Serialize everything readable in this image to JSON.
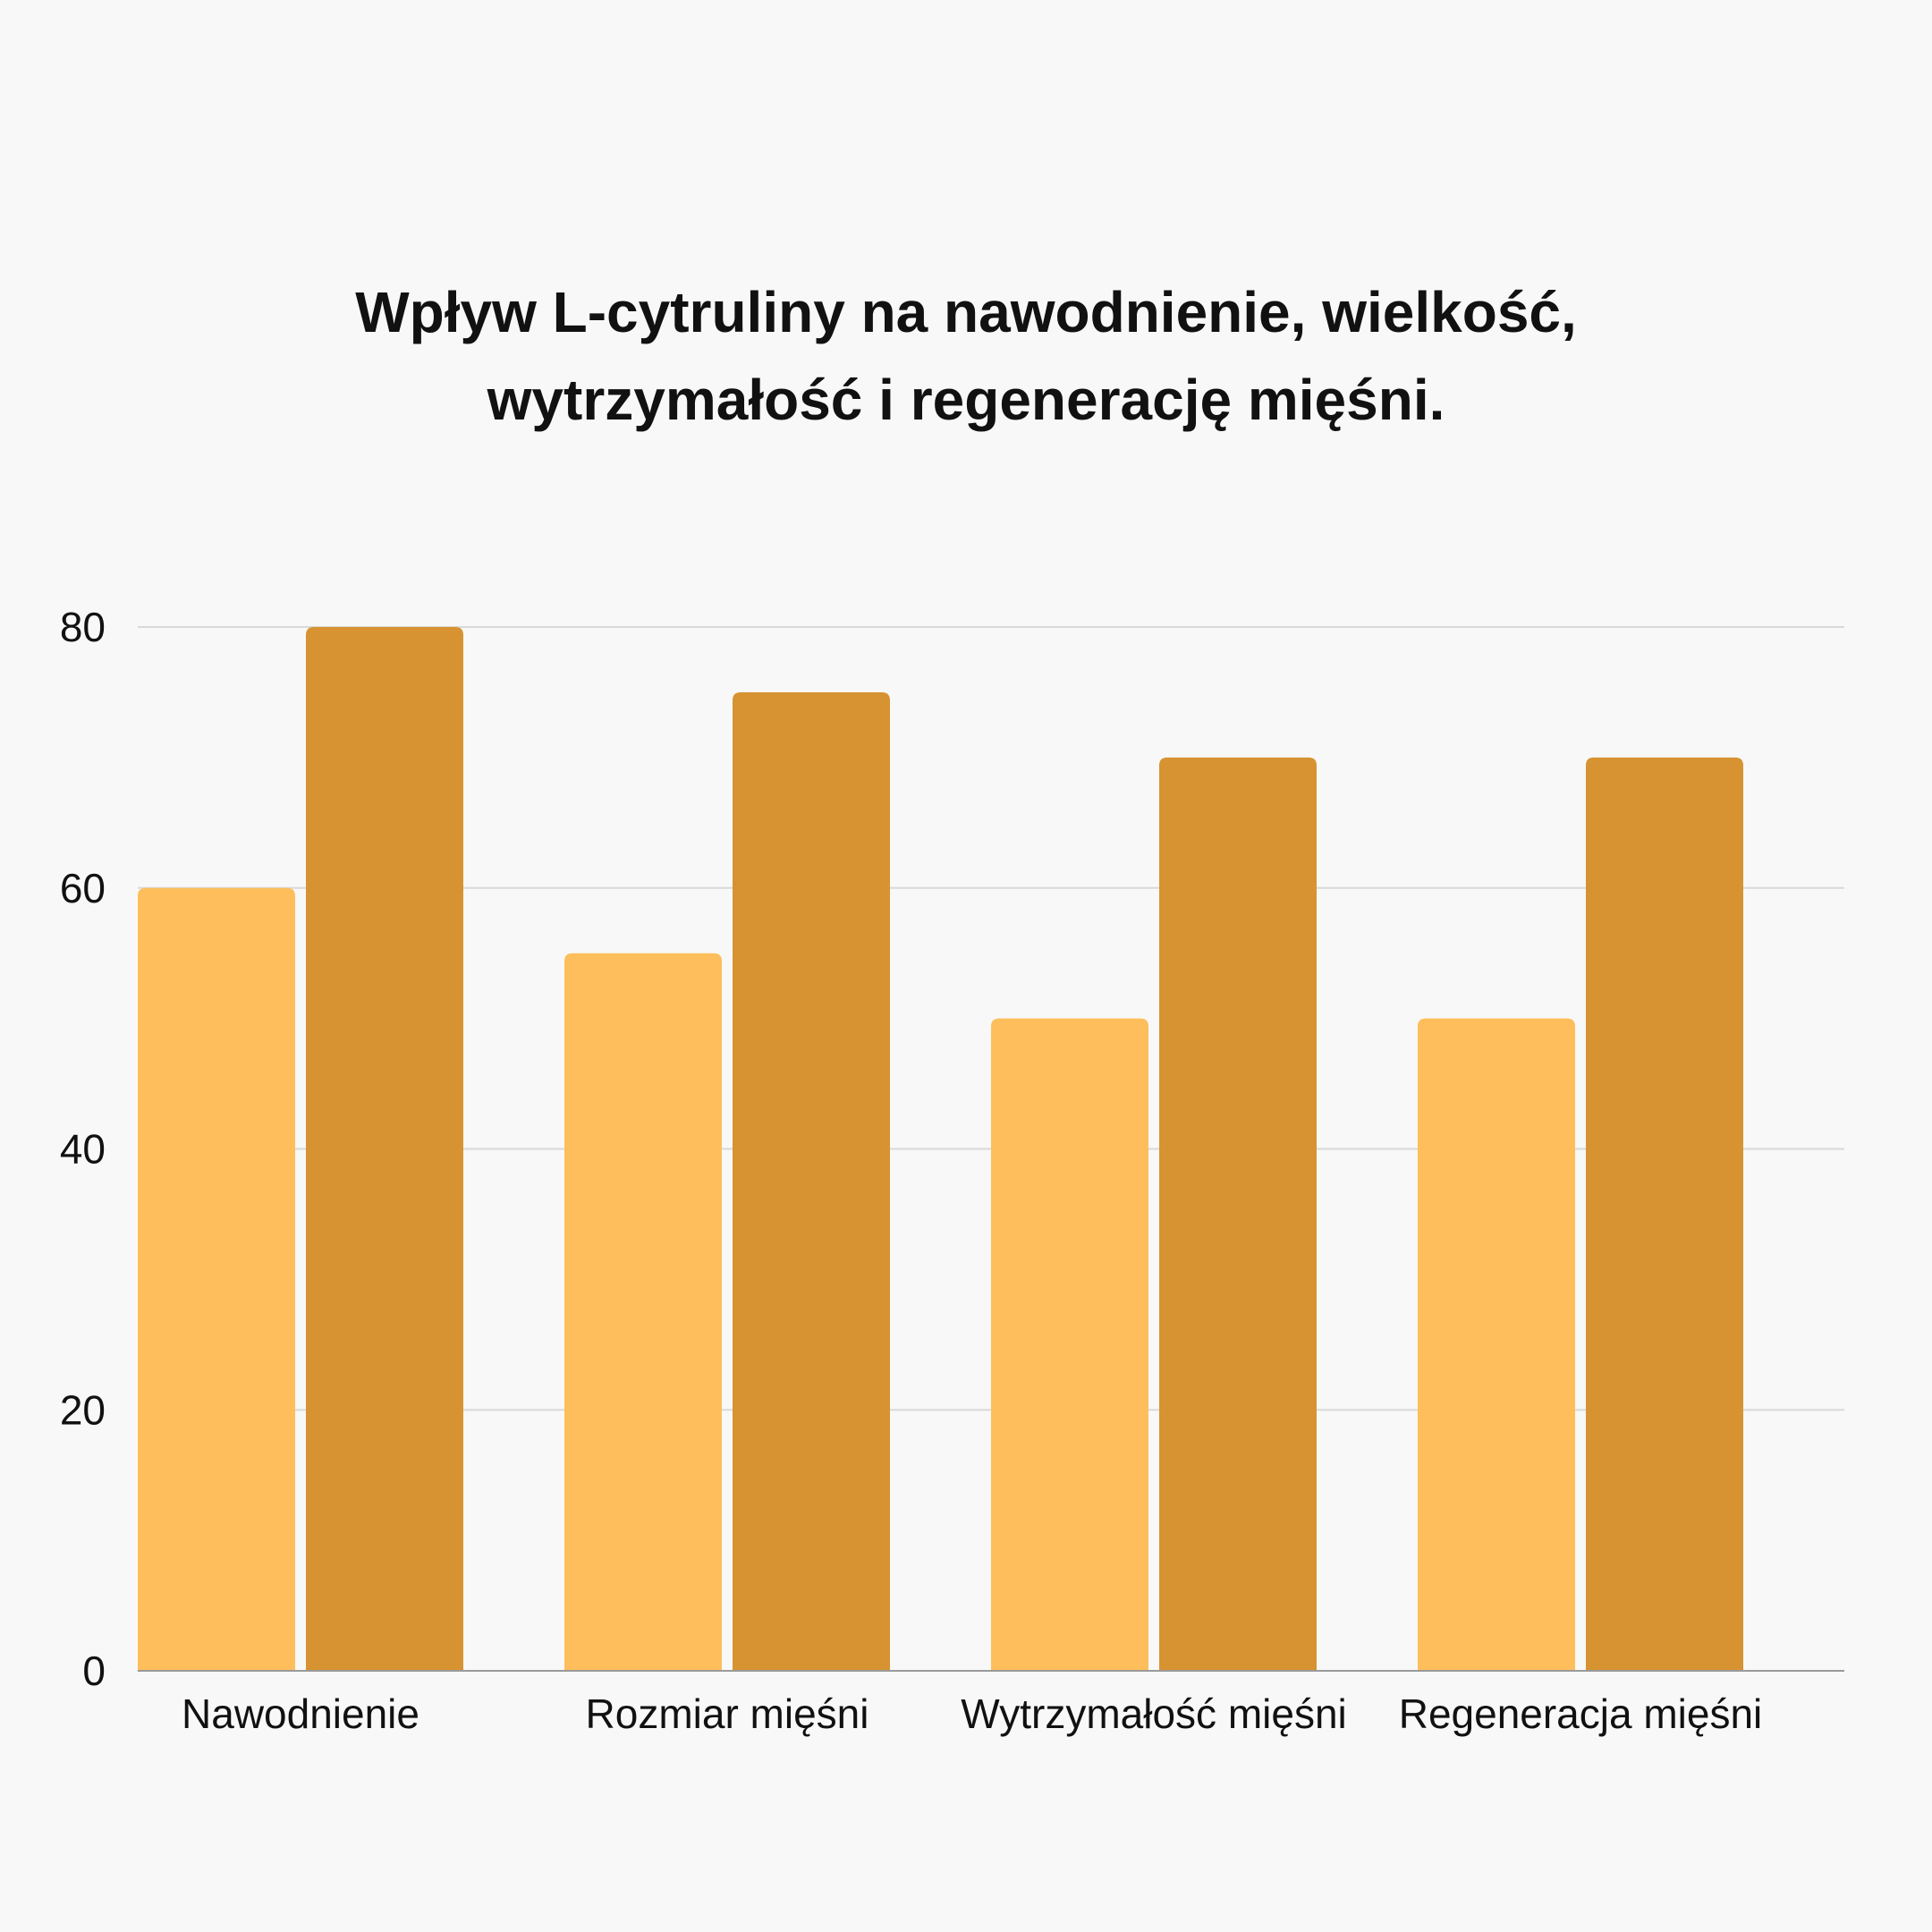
{
  "chart_data": {
    "type": "bar",
    "title_lines": [
      "Wpływ L-cytruliny na nawodnienie, wielkość,",
      "wytrzymałość i regenerację mięśni."
    ],
    "title": "Wpływ L-cytruliny na nawodnienie, wielkość, wytrzymałość i regenerację mięśni.",
    "xlabel": "",
    "ylabel": "",
    "categories": [
      "Nawodnienie",
      "Rozmiar mięśni",
      "Wytrzymałość mięśni",
      "Regeneracja mięśni"
    ],
    "series": [
      {
        "values": [
          60,
          55,
          50,
          50
        ],
        "color": "#fdbe5b"
      },
      {
        "values": [
          80,
          75,
          70,
          70
        ],
        "color": "#d79332"
      }
    ],
    "ylim": [
      0,
      80
    ],
    "yticks": [
      0,
      20,
      40,
      60,
      80
    ],
    "grid": true,
    "legend": "none"
  }
}
